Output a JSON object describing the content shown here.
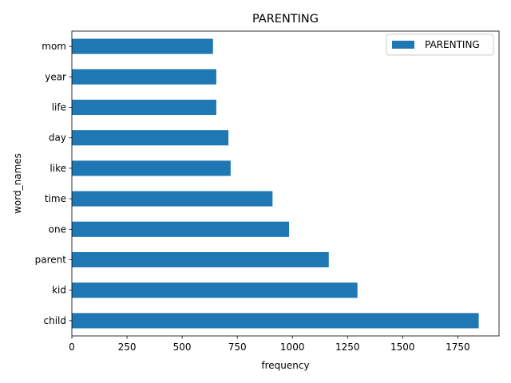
{
  "chart_data": {
    "type": "bar",
    "orientation": "horizontal",
    "title": "PARENTING",
    "xlabel": "frequency",
    "ylabel": "word_names",
    "categories": [
      "child",
      "kid",
      "parent",
      "one",
      "time",
      "like",
      "day",
      "life",
      "year",
      "mom"
    ],
    "series": [
      {
        "name": "PARENTING",
        "values": [
          1845,
          1295,
          1165,
          985,
          910,
          720,
          710,
          655,
          655,
          640
        ]
      }
    ],
    "xlim": [
      0,
      1937
    ],
    "xticks": [
      0,
      250,
      500,
      750,
      1000,
      1250,
      1500,
      1750
    ],
    "grid": false,
    "legend_position": "top-right",
    "color": "#1f77b4"
  }
}
